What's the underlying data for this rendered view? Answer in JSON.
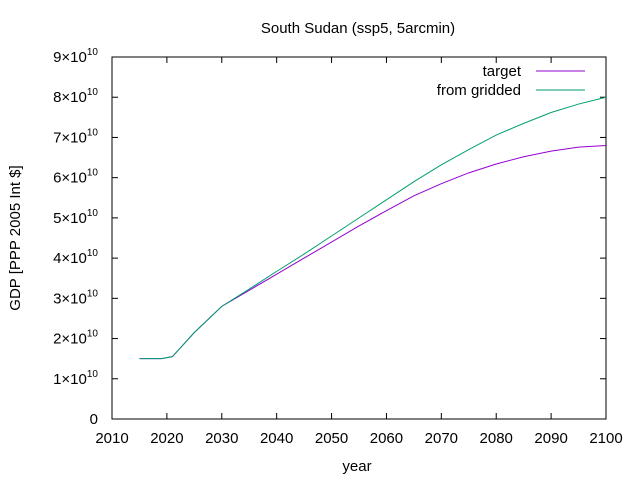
{
  "chart_data": {
    "type": "line",
    "title": "South Sudan (ssp5, 5arcmin)",
    "xlabel": "year",
    "ylabel": "GDP [PPP 2005 Int $]",
    "xlim": [
      2010,
      2100
    ],
    "ylim": [
      0,
      90000000000
    ],
    "x_ticks": [
      {
        "value": 2010,
        "label": "2010"
      },
      {
        "value": 2020,
        "label": "2020"
      },
      {
        "value": 2030,
        "label": "2030"
      },
      {
        "value": 2040,
        "label": "2040"
      },
      {
        "value": 2050,
        "label": "2050"
      },
      {
        "value": 2060,
        "label": "2060"
      },
      {
        "value": 2070,
        "label": "2070"
      },
      {
        "value": 2080,
        "label": "2080"
      },
      {
        "value": 2090,
        "label": "2090"
      },
      {
        "value": 2100,
        "label": "2100"
      }
    ],
    "y_ticks": [
      {
        "value": 0,
        "mantissa": "0",
        "exponent": ""
      },
      {
        "value": 10000000000,
        "mantissa": "1×10",
        "exponent": "10"
      },
      {
        "value": 20000000000,
        "mantissa": "2×10",
        "exponent": "10"
      },
      {
        "value": 30000000000,
        "mantissa": "3×10",
        "exponent": "10"
      },
      {
        "value": 40000000000,
        "mantissa": "4×10",
        "exponent": "10"
      },
      {
        "value": 50000000000,
        "mantissa": "5×10",
        "exponent": "10"
      },
      {
        "value": 60000000000,
        "mantissa": "6×10",
        "exponent": "10"
      },
      {
        "value": 70000000000,
        "mantissa": "7×10",
        "exponent": "10"
      },
      {
        "value": 80000000000,
        "mantissa": "8×10",
        "exponent": "10"
      },
      {
        "value": 90000000000,
        "mantissa": "9×10",
        "exponent": "10"
      }
    ],
    "legend_position": "top-right",
    "grid": false,
    "series": [
      {
        "name": "target",
        "color": "#9400d3",
        "x": [
          2015,
          2019,
          2021,
          2025,
          2030,
          2035,
          2040,
          2045,
          2050,
          2055,
          2060,
          2065,
          2070,
          2075,
          2080,
          2085,
          2090,
          2095,
          2100
        ],
        "y": [
          15000000000,
          15000000000,
          15500000000,
          21500000000,
          28000000000,
          32000000000,
          36000000000,
          40000000000,
          44000000000,
          48000000000,
          51800000000,
          55500000000,
          58500000000,
          61200000000,
          63400000000,
          65200000000,
          66600000000,
          67600000000,
          68000000000
        ]
      },
      {
        "name": "from gridded",
        "color": "#009e73",
        "x": [
          2015,
          2019,
          2021,
          2025,
          2030,
          2035,
          2040,
          2045,
          2050,
          2055,
          2060,
          2065,
          2070,
          2075,
          2080,
          2085,
          2090,
          2095,
          2100
        ],
        "y": [
          15000000000,
          15000000000,
          15500000000,
          21500000000,
          28000000000,
          32300000000,
          36700000000,
          41000000000,
          45500000000,
          50000000000,
          54500000000,
          59000000000,
          63200000000,
          67000000000,
          70600000000,
          73500000000,
          76200000000,
          78300000000,
          80000000000
        ]
      }
    ]
  }
}
